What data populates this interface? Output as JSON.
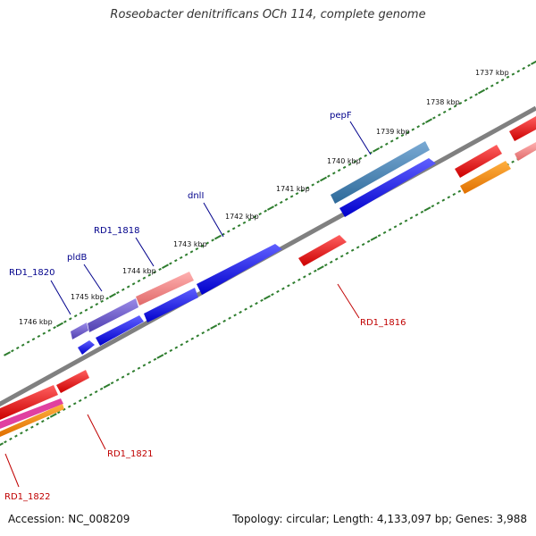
{
  "title": "Roseobacter denitrificans OCh 114, complete genome",
  "footer": {
    "accession": "Accession: NC_008209",
    "summary": "Topology: circular; Length: 4,133,097 bp; Genes: 3,988"
  },
  "colors": {
    "backbone": "#808080",
    "tick": "#2e7d2e",
    "forward_label": "#00008b",
    "reverse_label": "#c00000",
    "cds_blue": "#0000ee",
    "cds_red": "#ee0000",
    "cds_pink": "#f08080",
    "cds_purple": "#6a5acd",
    "cds_steel": "#4682b4",
    "cds_orange": "#ff8c00",
    "cds_magenta": "#e040a0"
  },
  "ruler": [
    "1737 kbp",
    "1738 kbp",
    "1739 kbp",
    "1740 kbp",
    "1741 kbp",
    "1742 kbp",
    "1743 kbp",
    "1744 kbp",
    "1745 kbp",
    "1746 kbp"
  ],
  "gene_labels": {
    "forward": [
      "RD1_1820",
      "pldB",
      "RD1_1818",
      "dnlI",
      "pepF"
    ],
    "reverse": [
      "RD1_1816",
      "RD1_1821",
      "RD1_1822"
    ]
  }
}
